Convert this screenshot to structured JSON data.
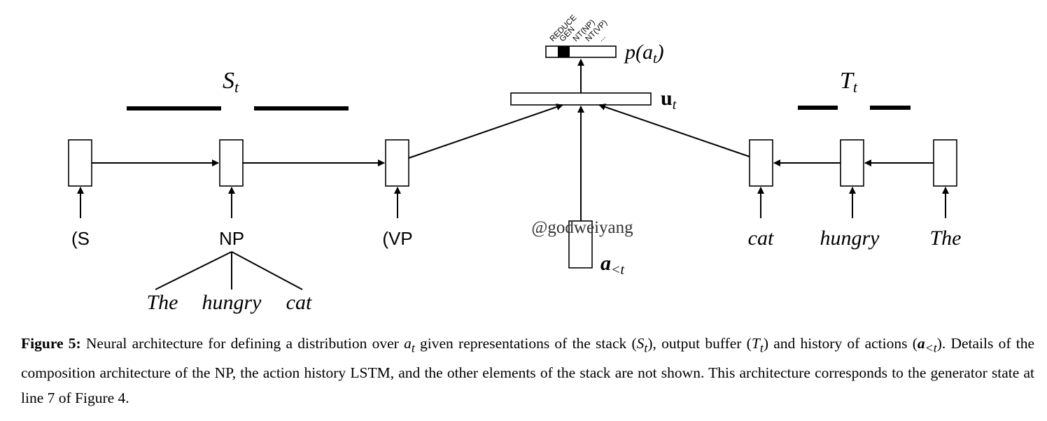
{
  "diagram": {
    "stack_label": "S",
    "stack_label_sub": "t",
    "buffer_label": "T",
    "buffer_label_sub": "t",
    "u_label": "u",
    "u_label_sub": "t",
    "p_label": "p(a",
    "p_label_sub": "t",
    "p_label_close": ")",
    "a_label": "a",
    "a_label_sub": "<t",
    "actions": [
      "REDUCE",
      "GEN",
      "NT(NP)",
      "NT(VP)",
      "..."
    ],
    "selected_action": "GEN",
    "stack_inputs": [
      "(S",
      "NP",
      "(VP"
    ],
    "np_children": [
      "The",
      "hungry",
      "cat"
    ],
    "buffer_inputs": [
      "cat",
      "hungry",
      "The"
    ],
    "watermark": "@godweiyang"
  },
  "caption": {
    "label": "Figure 5:",
    "text_1": " Neural architecture for defining a distribution over ",
    "a_t": "a",
    "a_t_sub": "t",
    "text_2": " given representations of the stack (",
    "s_t": "S",
    "s_t_sub": "t",
    "text_3": "), output buffer (",
    "t_t": "T",
    "t_t_sub": "t",
    "text_4": ") and history of actions (",
    "a_lt": "a",
    "a_lt_sub": "<t",
    "text_5": "). Details of the composition architecture of the NP, the action history LSTM, and the other elements of the stack are not shown. This architecture corresponds to the generator state at line 7 of Figure 4."
  }
}
